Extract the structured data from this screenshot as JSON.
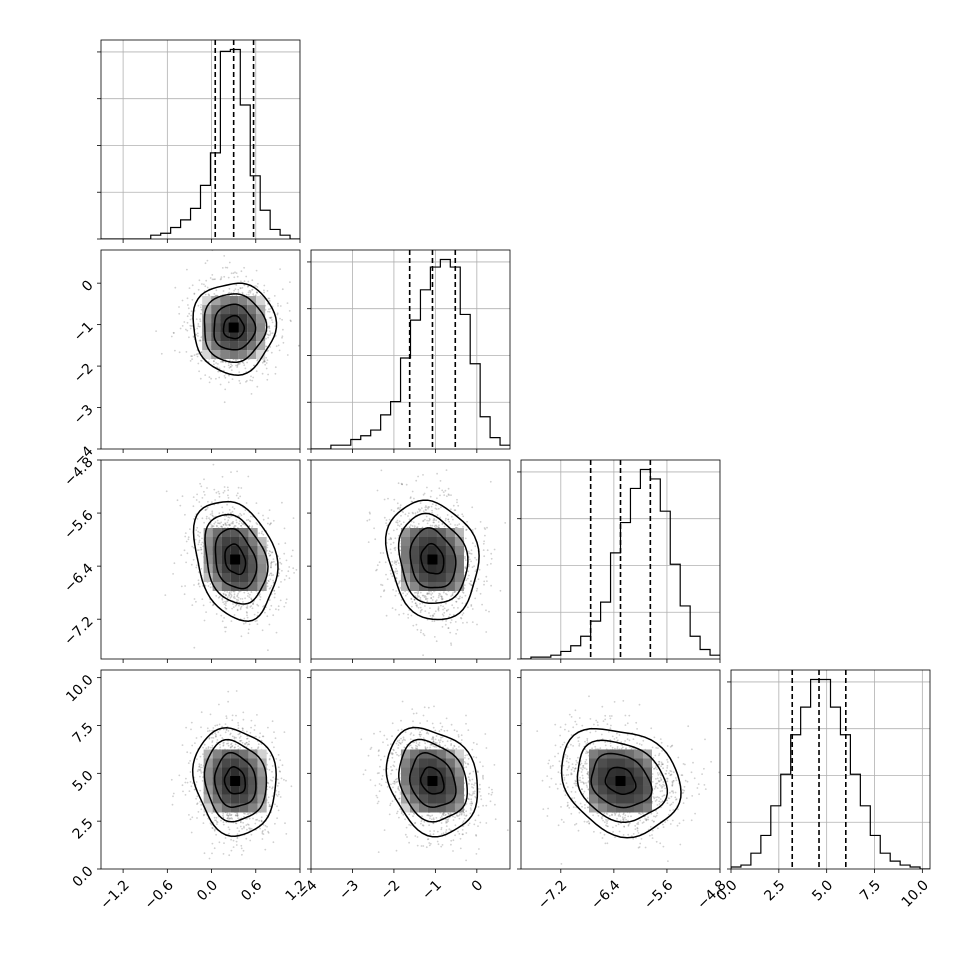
{
  "chart_data": {
    "type": "corner",
    "title": "",
    "parameters": [
      "",
      "",
      "",
      ""
    ],
    "grid": true,
    "quantile_lines": "dashed",
    "axes": [
      {
        "range": [
          -1.5,
          1.2
        ],
        "ticks": [
          {
            "value": -1.2,
            "label": "−1.2"
          },
          {
            "value": -0.6,
            "label": "−0.6"
          },
          {
            "value": 0.0,
            "label": "0.0"
          },
          {
            "value": 0.6,
            "label": "0.6"
          },
          {
            "value": 1.2,
            "label": "1.2"
          }
        ]
      },
      {
        "range": [
          -4.0,
          0.8
        ],
        "ticks": [
          {
            "value": -4,
            "label": "−4"
          },
          {
            "value": -3,
            "label": "−3"
          },
          {
            "value": -2,
            "label": "−2"
          },
          {
            "value": -1,
            "label": "−1"
          },
          {
            "value": 0,
            "label": "0"
          }
        ]
      },
      {
        "range": [
          -7.8,
          -4.8
        ],
        "ticks": [
          {
            "value": -7.2,
            "label": "−7.2"
          },
          {
            "value": -6.4,
            "label": "−6.4"
          },
          {
            "value": -5.6,
            "label": "−5.6"
          },
          {
            "value": -4.8,
            "label": "−4.8"
          }
        ]
      },
      {
        "range": [
          0.0,
          10.4
        ],
        "ticks": [
          {
            "value": 0.0,
            "label": "0.0"
          },
          {
            "value": 2.5,
            "label": "2.5"
          },
          {
            "value": 5.0,
            "label": "5.0"
          },
          {
            "value": 7.5,
            "label": "7.5"
          },
          {
            "value": 10.0,
            "label": "10.0"
          }
        ]
      }
    ],
    "quantiles": [
      [
        0.05,
        0.3,
        0.57
      ],
      [
        -1.62,
        -1.07,
        -0.52
      ],
      [
        -6.75,
        -6.3,
        -5.85
      ],
      [
        3.2,
        4.6,
        6.0
      ]
    ],
    "histograms": [
      {
        "edges": [
          -1.5,
          1.2
        ],
        "counts": [
          0,
          0,
          0,
          0,
          0,
          2,
          3,
          6,
          10,
          16,
          28,
          45,
          98,
          99,
          70,
          33,
          15,
          5,
          2,
          0
        ]
      },
      {
        "edges": [
          -4.0,
          0.8
        ],
        "counts": [
          0,
          0,
          2,
          2,
          5,
          7,
          10,
          18,
          25,
          48,
          68,
          84,
          96,
          100,
          96,
          71,
          45,
          17,
          6,
          2
        ]
      },
      {
        "edges": [
          -7.8,
          -4.8
        ],
        "counts": [
          0,
          1,
          1,
          2,
          4,
          7,
          12,
          20,
          30,
          56,
          72,
          90,
          100,
          95,
          78,
          50,
          28,
          12,
          5,
          2
        ]
      },
      {
        "edges": [
          0.0,
          10.4
        ],
        "counts": [
          1,
          2,
          8,
          17,
          32,
          48,
          68,
          82,
          96,
          96,
          82,
          68,
          48,
          32,
          17,
          8,
          4,
          2,
          1,
          0
        ]
      }
    ],
    "pairs": [
      {
        "x": 0,
        "y": 1,
        "center": [
          0.3,
          -1.07
        ],
        "sigma": [
          0.28,
          0.55
        ],
        "rho": 0.0
      },
      {
        "x": 0,
        "y": 2,
        "center": [
          0.32,
          -6.3
        ],
        "sigma": [
          0.28,
          0.45
        ],
        "rho": -0.25
      },
      {
        "x": 1,
        "y": 2,
        "center": [
          -1.07,
          -6.3
        ],
        "sigma": [
          0.55,
          0.45
        ],
        "rho": -0.15
      },
      {
        "x": 0,
        "y": 3,
        "center": [
          0.32,
          4.6
        ],
        "sigma": [
          0.28,
          1.4
        ],
        "rho": -0.1
      },
      {
        "x": 1,
        "y": 3,
        "center": [
          -1.07,
          4.6
        ],
        "sigma": [
          0.55,
          1.4
        ],
        "rho": -0.2
      },
      {
        "x": 2,
        "y": 3,
        "center": [
          -6.3,
          4.6
        ],
        "sigma": [
          0.45,
          1.4
        ],
        "rho": -0.2
      }
    ]
  }
}
